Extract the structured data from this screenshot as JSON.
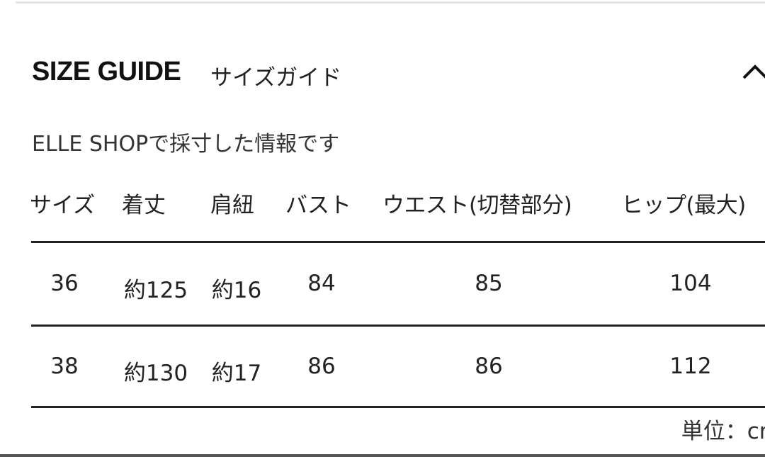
{
  "header": {
    "title": "SIZE GUIDE",
    "subtitle": "サイズガイド",
    "toggle_icon": "chevron-up-icon"
  },
  "note": "ELLE SHOPで採寸した情報です",
  "table": {
    "columns": [
      "サイズ",
      "着丈",
      "肩紐",
      "バスト",
      "ウエスト(切替部分)",
      "ヒップ(最大)"
    ],
    "rows": [
      [
        "36",
        "約125",
        "約16",
        "84",
        "85",
        "104"
      ],
      [
        "38",
        "約130",
        "約17",
        "86",
        "86",
        "112"
      ]
    ],
    "unit": "単位：cm"
  }
}
